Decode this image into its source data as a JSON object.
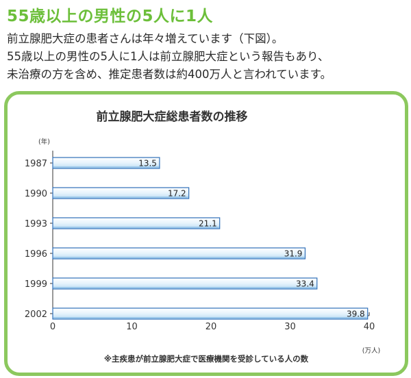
{
  "headline": "55歳以上の男性の5人に1人",
  "intro": [
    "前立腺肥大症の患者さんは年々増えています（下図）。",
    "55歳以上の男性の5人に1人は前立腺肥大症という報告もあり、",
    "未治療の方を含め、推定患者数は約400万人と言われています。"
  ],
  "chart_data": {
    "type": "bar",
    "orientation": "horizontal",
    "title": "前立腺肥大症総患者数の推移",
    "ylabel": "(年)",
    "xlabel": "(万人)",
    "categories": [
      "1987",
      "1990",
      "1993",
      "1996",
      "1999",
      "2002"
    ],
    "values": [
      13.5,
      17.2,
      21.1,
      31.9,
      33.4,
      39.8
    ],
    "value_labels": [
      "13.5",
      "17.2",
      "21.1",
      "31.9",
      "33.4",
      "39.8"
    ],
    "xlim": [
      0,
      40
    ],
    "xticks": [
      "0",
      "10",
      "20",
      "30",
      "40"
    ],
    "footnote": "※主疾患が前立腺肥大症で医療機関を受診している人の数",
    "bar_color": "#dff0fb",
    "bar_edge": "#2f6fb8",
    "grid": false
  }
}
